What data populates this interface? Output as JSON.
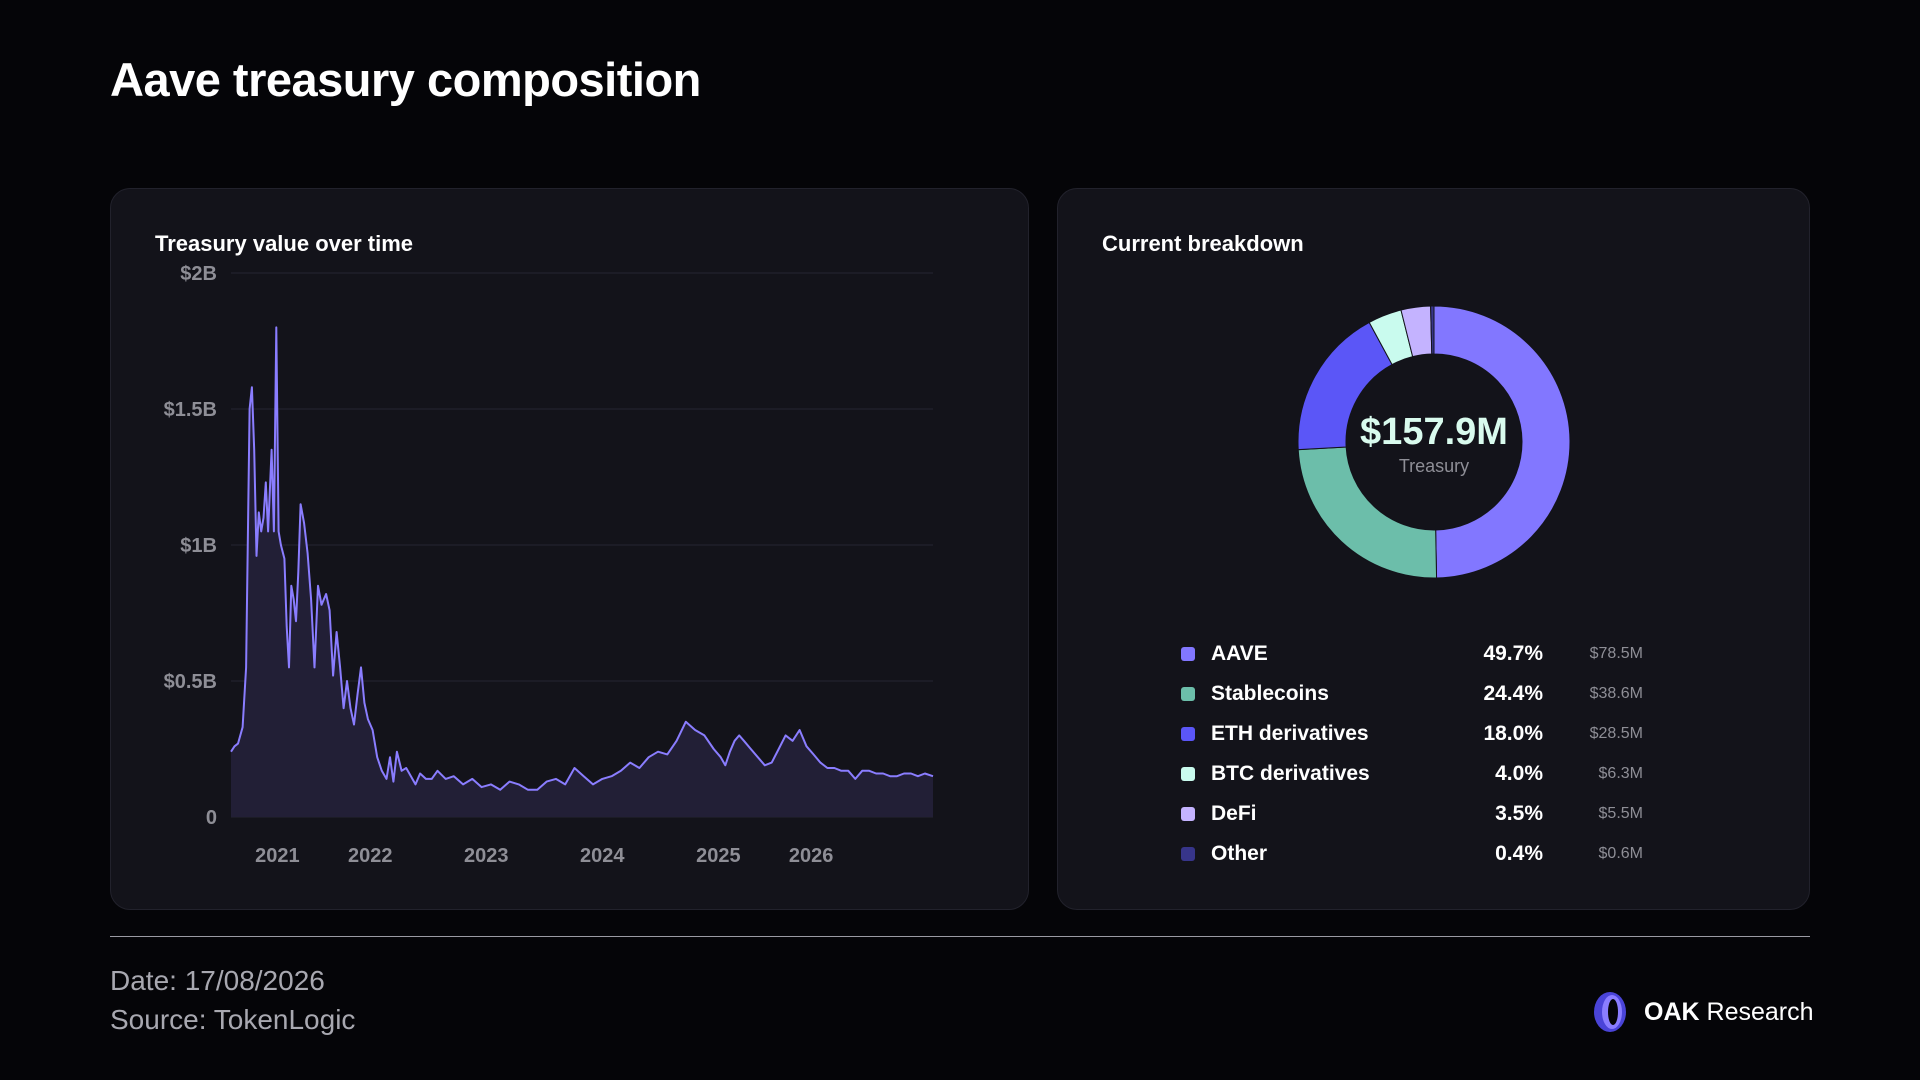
{
  "page": {
    "title": "Aave treasury composition"
  },
  "colors": {
    "line": "#8a7dff",
    "area": "#221f36",
    "grid": "#262631",
    "aave": "#8277ff",
    "stablecoins": "#6cbeaa",
    "eth_derivatives": "#5b56f7",
    "btc_derivatives": "#c9fbee",
    "defi": "#c4b3ff",
    "other": "#37358a"
  },
  "line_card": {
    "title": "Treasury value over time"
  },
  "donut_card": {
    "title": "Current breakdown",
    "total": "$157.9M",
    "total_label": "Treasury"
  },
  "footer": {
    "date": "Date: 17/08/2026",
    "source": "Source: TokenLogic"
  },
  "brand": {
    "name_bold": "OAK",
    "name_rest": " Research",
    "icon": "oak-logo-icon"
  },
  "chart_data": [
    {
      "type": "area",
      "title": "Treasury value over time",
      "xlabel": "",
      "ylabel": "",
      "y_unit": "USD billions",
      "ylim": [
        0,
        2
      ],
      "y_ticks": [
        {
          "value": 0,
          "label": "0"
        },
        {
          "value": 0.5,
          "label": "$0.5B"
        },
        {
          "value": 1,
          "label": "$1B"
        },
        {
          "value": 1.5,
          "label": "$1.5B"
        },
        {
          "value": 2,
          "label": "$2B"
        }
      ],
      "xlim": [
        2020.7,
        2026.75
      ],
      "x_ticks": [
        {
          "value": 2021.1,
          "label": "2021"
        },
        {
          "value": 2021.9,
          "label": "2022"
        },
        {
          "value": 2022.9,
          "label": "2023"
        },
        {
          "value": 2023.9,
          "label": "2024"
        },
        {
          "value": 2024.9,
          "label": "2025"
        },
        {
          "value": 2025.7,
          "label": "2026"
        }
      ],
      "grid": true,
      "series": [
        {
          "x": [
            2020.7,
            2020.73,
            2020.76,
            2020.8,
            2020.83,
            2020.86,
            2020.88,
            2020.9,
            2020.92,
            2020.94,
            2020.96,
            2020.98,
            2021.0,
            2021.02,
            2021.05,
            2021.07,
            2021.09,
            2021.11,
            2021.13,
            2021.16,
            2021.18,
            2021.2,
            2021.22,
            2021.24,
            2021.26,
            2021.28,
            2021.3,
            2021.33,
            2021.36,
            2021.39,
            2021.42,
            2021.45,
            2021.48,
            2021.52,
            2021.55,
            2021.58,
            2021.61,
            2021.64,
            2021.67,
            2021.7,
            2021.73,
            2021.76,
            2021.79,
            2021.82,
            2021.85,
            2021.88,
            2021.92,
            2021.96,
            2022.0,
            2022.04,
            2022.07,
            2022.1,
            2022.13,
            2022.17,
            2022.21,
            2022.25,
            2022.29,
            2022.33,
            2022.38,
            2022.43,
            2022.48,
            2022.55,
            2022.62,
            2022.7,
            2022.78,
            2022.86,
            2022.94,
            2023.02,
            2023.1,
            2023.18,
            2023.26,
            2023.34,
            2023.42,
            2023.5,
            2023.58,
            2023.66,
            2023.74,
            2023.82,
            2023.9,
            2023.98,
            2024.06,
            2024.14,
            2024.22,
            2024.3,
            2024.38,
            2024.46,
            2024.54,
            2024.62,
            2024.7,
            2024.78,
            2024.86,
            2024.92,
            2024.96,
            2025.0,
            2025.04,
            2025.08,
            2025.12,
            2025.18,
            2025.24,
            2025.3,
            2025.36,
            2025.42,
            2025.48,
            2025.54,
            2025.6,
            2025.66,
            2025.72,
            2025.78,
            2025.84,
            2025.9,
            2025.96,
            2026.02,
            2026.08,
            2026.14,
            2026.2,
            2026.26,
            2026.32,
            2026.38,
            2026.44,
            2026.5,
            2026.56,
            2026.62,
            2026.68,
            2026.75
          ],
          "values": [
            0.24,
            0.26,
            0.27,
            0.33,
            0.55,
            1.5,
            1.58,
            1.35,
            0.96,
            1.12,
            1.05,
            1.1,
            1.23,
            1.05,
            1.35,
            1.05,
            1.8,
            1.05,
            1.0,
            0.95,
            0.7,
            0.55,
            0.85,
            0.8,
            0.72,
            0.9,
            1.15,
            1.08,
            0.97,
            0.8,
            0.55,
            0.85,
            0.78,
            0.82,
            0.76,
            0.52,
            0.68,
            0.55,
            0.4,
            0.5,
            0.4,
            0.34,
            0.45,
            0.55,
            0.42,
            0.36,
            0.32,
            0.22,
            0.17,
            0.14,
            0.22,
            0.13,
            0.24,
            0.17,
            0.18,
            0.15,
            0.12,
            0.16,
            0.14,
            0.14,
            0.17,
            0.14,
            0.15,
            0.12,
            0.14,
            0.11,
            0.12,
            0.1,
            0.13,
            0.12,
            0.1,
            0.1,
            0.13,
            0.14,
            0.12,
            0.18,
            0.15,
            0.12,
            0.14,
            0.15,
            0.17,
            0.2,
            0.18,
            0.22,
            0.24,
            0.23,
            0.28,
            0.35,
            0.32,
            0.3,
            0.25,
            0.22,
            0.19,
            0.24,
            0.28,
            0.3,
            0.28,
            0.25,
            0.22,
            0.19,
            0.2,
            0.25,
            0.3,
            0.28,
            0.32,
            0.26,
            0.23,
            0.2,
            0.18,
            0.18,
            0.17,
            0.17,
            0.14,
            0.17,
            0.17,
            0.16,
            0.16,
            0.15,
            0.15,
            0.16,
            0.16,
            0.15,
            0.16,
            0.15
          ]
        }
      ]
    },
    {
      "type": "pie",
      "title": "Current breakdown",
      "center_value": "$157.9M",
      "center_label": "Treasury",
      "categories": [
        "AAVE",
        "Stablecoins",
        "ETH derivatives",
        "BTC derivatives",
        "DeFi",
        "Other"
      ],
      "values": [
        49.7,
        24.4,
        18.0,
        4.0,
        3.5,
        0.4
      ],
      "value_labels": [
        "49.7%",
        "24.4%",
        "18.0%",
        "4.0%",
        "3.5%",
        "0.4%"
      ],
      "amount_labels": [
        "$78.5M",
        "$38.6M",
        "$28.5M",
        "$6.3M",
        "$5.5M",
        "$0.6M"
      ],
      "color_keys": [
        "aave",
        "stablecoins",
        "eth_derivatives",
        "btc_derivatives",
        "defi",
        "other"
      ],
      "legend": "bottom"
    }
  ]
}
